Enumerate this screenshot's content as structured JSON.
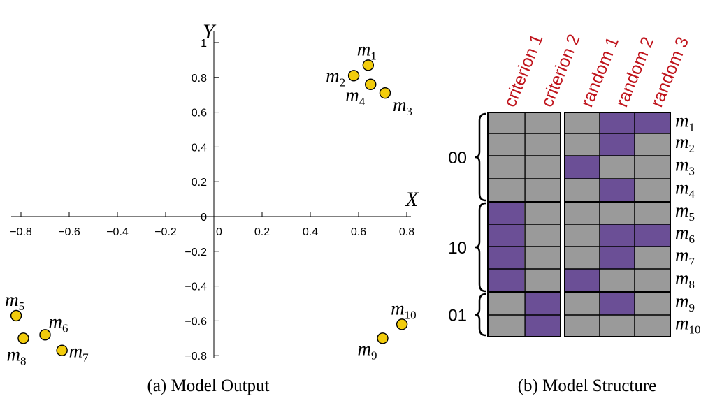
{
  "colors": {
    "point_fill": "#f2cc0c",
    "point_stroke": "#000000",
    "cell_active": "#6b4f96",
    "cell_inactive": "#9a9a9a",
    "column_label": "#c0141c"
  },
  "chart_data": [
    {
      "type": "scatter",
      "caption": "(a) Model Output",
      "xlabel": "X",
      "ylabel": "Y",
      "xlim": [
        -0.85,
        0.85
      ],
      "ylim": [
        -0.82,
        1.0
      ],
      "x_ticks": [
        {
          "value": -0.8,
          "label": "−0.8"
        },
        {
          "value": -0.6,
          "label": "−0.6"
        },
        {
          "value": -0.4,
          "label": "−0.4"
        },
        {
          "value": -0.2,
          "label": "−0.2"
        },
        {
          "value": 0,
          "label": "0"
        },
        {
          "value": 0.2,
          "label": "0.2"
        },
        {
          "value": 0.4,
          "label": "0.4"
        },
        {
          "value": 0.6,
          "label": "0.6"
        },
        {
          "value": 0.8,
          "label": "0.8"
        }
      ],
      "y_ticks": [
        {
          "value": 1,
          "label": "1"
        },
        {
          "value": 0.8,
          "label": "0.8"
        },
        {
          "value": 0.6,
          "label": "0.6"
        },
        {
          "value": 0.4,
          "label": "0.4"
        },
        {
          "value": 0.2,
          "label": "0.2"
        },
        {
          "value": 0,
          "label": "0"
        },
        {
          "value": -0.2,
          "label": "−0.2"
        },
        {
          "value": -0.4,
          "label": "−0.4"
        },
        {
          "value": -0.6,
          "label": "−0.6"
        },
        {
          "value": -0.8,
          "label": "−0.8"
        }
      ],
      "points": [
        {
          "name": "m",
          "sub": "1",
          "x": 0.64,
          "y": 0.87,
          "label_pos": "above"
        },
        {
          "name": "m",
          "sub": "2",
          "x": 0.58,
          "y": 0.81,
          "label_pos": "left"
        },
        {
          "name": "m",
          "sub": "3",
          "x": 0.71,
          "y": 0.71,
          "label_pos": "below-right"
        },
        {
          "name": "m",
          "sub": "4",
          "x": 0.65,
          "y": 0.76,
          "label_pos": "below-left"
        },
        {
          "name": "m",
          "sub": "5",
          "x": -0.82,
          "y": -0.57,
          "label_pos": "above"
        },
        {
          "name": "m",
          "sub": "6",
          "x": -0.7,
          "y": -0.68,
          "label_pos": "above-right"
        },
        {
          "name": "m",
          "sub": "7",
          "x": -0.63,
          "y": -0.77,
          "label_pos": "right"
        },
        {
          "name": "m",
          "sub": "8",
          "x": -0.79,
          "y": -0.7,
          "label_pos": "below"
        },
        {
          "name": "m",
          "sub": "9",
          "x": 0.7,
          "y": -0.7,
          "label_pos": "below-left"
        },
        {
          "name": "m",
          "sub": "10",
          "x": 0.78,
          "y": -0.62,
          "label_pos": "above"
        }
      ]
    },
    {
      "type": "heatmap",
      "caption": "(b) Model Structure",
      "columns": [
        "criterion 1",
        "criterion 2",
        "random 1",
        "random 2",
        "random 3"
      ],
      "rows": [
        {
          "name": "m",
          "sub": "1"
        },
        {
          "name": "m",
          "sub": "2"
        },
        {
          "name": "m",
          "sub": "3"
        },
        {
          "name": "m",
          "sub": "4"
        },
        {
          "name": "m",
          "sub": "5"
        },
        {
          "name": "m",
          "sub": "6"
        },
        {
          "name": "m",
          "sub": "7"
        },
        {
          "name": "m",
          "sub": "8"
        },
        {
          "name": "m",
          "sub": "9"
        },
        {
          "name": "m",
          "sub": "10"
        }
      ],
      "groups": [
        {
          "label": "00",
          "rows": [
            0,
            3
          ]
        },
        {
          "label": "10",
          "rows": [
            4,
            7
          ]
        },
        {
          "label": "01",
          "rows": [
            8,
            9
          ]
        }
      ],
      "values": [
        [
          0,
          0,
          0,
          1,
          1
        ],
        [
          0,
          0,
          0,
          1,
          0
        ],
        [
          0,
          0,
          1,
          0,
          0
        ],
        [
          0,
          0,
          0,
          1,
          0
        ],
        [
          1,
          0,
          0,
          0,
          0
        ],
        [
          1,
          0,
          0,
          1,
          1
        ],
        [
          1,
          0,
          0,
          1,
          0
        ],
        [
          1,
          0,
          1,
          0,
          0
        ],
        [
          0,
          1,
          0,
          1,
          0
        ],
        [
          0,
          1,
          0,
          0,
          0
        ]
      ]
    }
  ]
}
